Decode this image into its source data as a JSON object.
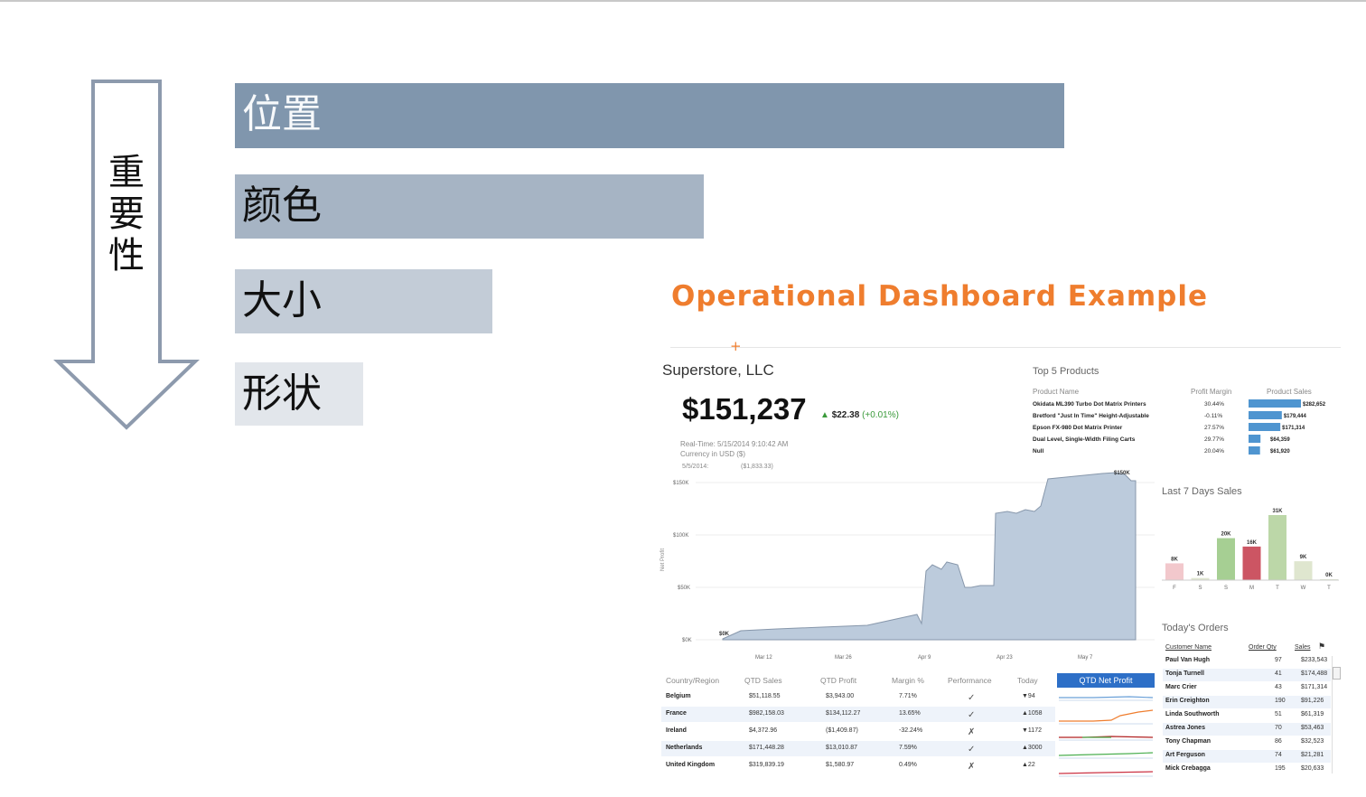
{
  "arrow_label": [
    "重",
    "要",
    "性"
  ],
  "bars": [
    "位置",
    "颜色",
    "大小",
    "形状"
  ],
  "dashboard": {
    "title": "Operational Dashboard Example",
    "company": "Superstore, LLC",
    "kpi_value": "$151,237",
    "kpi_delta": "$22.38",
    "kpi_delta_pct": "(+0.01%)",
    "meta_realtime": "Real-Time: 5/15/2014 9:10:42 AM",
    "meta_currency": "Currency in USD ($)",
    "meta_date": "5/5/2014:",
    "meta_date_value": "($1,833.33)",
    "main_chart": {
      "ylabel": "Net Profit",
      "y_ticks": [
        "$150K",
        "$100K",
        "$50K",
        "$0K"
      ],
      "x_ticks": [
        "Mar 12",
        "Mar 26",
        "Apr 9",
        "Apr 23",
        "May 7"
      ],
      "start_label": "$0K",
      "end_label": "$150K"
    },
    "top5": {
      "title": "Top 5 Products",
      "headers": [
        "Product Name",
        "Profit Margin",
        "Product Sales"
      ],
      "rows": [
        {
          "name": "Okidata ML390 Turbo Dot Matrix Printers",
          "margin": "30.44%",
          "sales": "$282,652",
          "value": 282652
        },
        {
          "name": "Bretford \"Just In Time\" Height-Adjustable",
          "margin": "-0.11%",
          "sales": "$179,444",
          "value": 179444
        },
        {
          "name": "Epson FX-980 Dot Matrix Printer",
          "margin": "27.57%",
          "sales": "$171,314",
          "value": 171314
        },
        {
          "name": "Dual Level, Single-Width Filing Carts",
          "margin": "29.77%",
          "sales": "$64,359",
          "value": 64359
        },
        {
          "name": "Null",
          "margin": "20.04%",
          "sales": "$61,920",
          "value": 61920
        }
      ]
    },
    "last7": {
      "title": "Last 7 Days Sales",
      "days": [
        "F",
        "S",
        "S",
        "M",
        "T",
        "W",
        "T"
      ],
      "labels": [
        "8K",
        "1K",
        "20K",
        "16K",
        "31K",
        "9K",
        "0K"
      ],
      "values": [
        8,
        1,
        20,
        16,
        31,
        9,
        0
      ],
      "colors": [
        "#f2c8cc",
        "#dfe6cf",
        "#a6cf93",
        "#cc5563",
        "#bcd7a8",
        "#dfe6cf",
        "#dfe6cf"
      ]
    },
    "orders": {
      "title": "Today's Orders",
      "headers": [
        "Customer Name",
        "Order Qty",
        "Sales"
      ],
      "rows": [
        [
          "Paul Van Hugh",
          "97",
          "$233,543"
        ],
        [
          "Tonja Turnell",
          "41",
          "$174,488"
        ],
        [
          "Marc Crier",
          "43",
          "$171,314"
        ],
        [
          "Erin Creighton",
          "190",
          "$91,226"
        ],
        [
          "Linda Southworth",
          "51",
          "$61,319"
        ],
        [
          "Astrea Jones",
          "70",
          "$53,463"
        ],
        [
          "Tony Chapman",
          "86",
          "$32,523"
        ],
        [
          "Art Ferguson",
          "74",
          "$21,281"
        ],
        [
          "Mick Crebagga",
          "195",
          "$20,633"
        ]
      ]
    },
    "country_table": {
      "headers": [
        "Country/Region",
        "QTD Sales",
        "QTD Profit",
        "Margin %",
        "Performance",
        "Today"
      ],
      "qtd_button": "QTD Net Profit",
      "rows": [
        [
          "Belgium",
          "$51,118.55",
          "$3,943.00",
          "7.71%",
          "✓",
          "▼94"
        ],
        [
          "France",
          "$982,158.03",
          "$134,112.27",
          "13.65%",
          "✓",
          "▲1058"
        ],
        [
          "Ireland",
          "$4,372.96",
          "($1,409.87)",
          "-32.24%",
          "✗",
          "▼1172"
        ],
        [
          "Netherlands",
          "$171,448.28",
          "$13,010.87",
          "7.59%",
          "✓",
          "▲3000"
        ],
        [
          "United Kingdom",
          "$319,839.19",
          "$1,580.97",
          "0.49%",
          "✗",
          "▲22"
        ]
      ],
      "spark_colors": [
        "#6aa0d8",
        "#ef7d2e",
        "#b22222",
        "#4caf50",
        "#cc3344",
        "#8a5ac8"
      ]
    },
    "colors": {
      "title": "#ef7d2e",
      "area_fill": "#bccbdc",
      "area_line": "#8797ab",
      "bar_blue": "#4f95d0"
    }
  }
}
